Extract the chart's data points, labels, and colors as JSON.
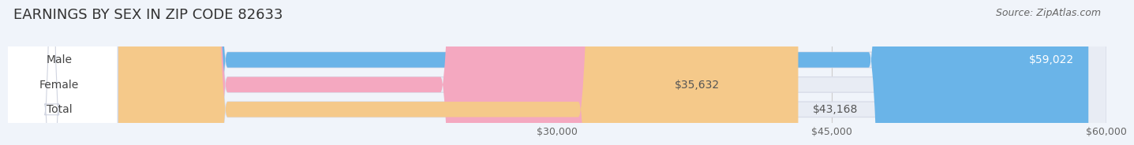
{
  "title": "EARNINGS BY SEX IN ZIP CODE 82633",
  "source": "Source: ZipAtlas.com",
  "categories": [
    "Male",
    "Female",
    "Total"
  ],
  "values": [
    59022,
    35632,
    43168
  ],
  "bar_colors": [
    "#6ab4e8",
    "#f4a8c0",
    "#f5c98a"
  ],
  "bar_edge_colors": [
    "#a8d4f0",
    "#f9c8d8",
    "#f9ddb0"
  ],
  "label_inside": [
    "$59,022",
    null,
    null
  ],
  "label_outside": [
    null,
    "$35,632",
    "$43,168"
  ],
  "xmin": 0,
  "xmax": 60000,
  "xtick_values": [
    30000,
    45000,
    60000
  ],
  "xtick_labels": [
    "$30,000",
    "$45,000",
    "$60,000"
  ],
  "background_color": "#f0f4fa",
  "bar_bg_color": "#e8ecf4",
  "title_fontsize": 13,
  "label_fontsize": 10,
  "tick_fontsize": 9,
  "source_fontsize": 9
}
